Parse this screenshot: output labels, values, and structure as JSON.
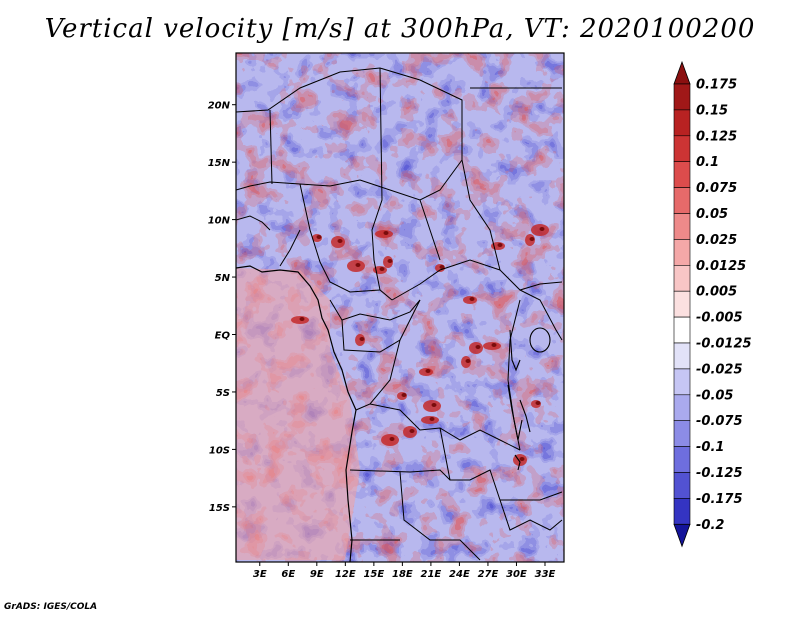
{
  "title": "Vertical velocity [m/s] at 300hPa, VT: 2020100200",
  "footer": "GrADS: IGES/COLA",
  "colors": {
    "background": "#ffffff",
    "border": "#000000"
  },
  "map": {
    "lat_ticks": [
      {
        "value": 20,
        "label": "20N"
      },
      {
        "value": 15,
        "label": "15N"
      },
      {
        "value": 10,
        "label": "10N"
      },
      {
        "value": 5,
        "label": "5N"
      },
      {
        "value": 0,
        "label": "EQ"
      },
      {
        "value": -5,
        "label": "5S"
      },
      {
        "value": -10,
        "label": "10S"
      },
      {
        "value": -15,
        "label": "15S"
      }
    ],
    "lon_ticks": [
      {
        "value": 3,
        "label": "3E"
      },
      {
        "value": 6,
        "label": "6E"
      },
      {
        "value": 9,
        "label": "9E"
      },
      {
        "value": 12,
        "label": "12E"
      },
      {
        "value": 15,
        "label": "15E"
      },
      {
        "value": 18,
        "label": "18E"
      },
      {
        "value": 21,
        "label": "21E"
      },
      {
        "value": 24,
        "label": "24E"
      },
      {
        "value": 27,
        "label": "27E"
      },
      {
        "value": 30,
        "label": "30E"
      },
      {
        "value": 33,
        "label": "33E"
      }
    ],
    "lon_range": [
      0.5,
      35
    ],
    "lat_range": [
      -19.8,
      24.5
    ]
  },
  "colorbar": {
    "levels": [
      {
        "label": "0.175",
        "color": "#a01818"
      },
      {
        "label": "0.15",
        "color": "#b82222"
      },
      {
        "label": "0.125",
        "color": "#cc3434"
      },
      {
        "label": "0.1",
        "color": "#dc4c4c"
      },
      {
        "label": "0.075",
        "color": "#e66a6a"
      },
      {
        "label": "0.05",
        "color": "#ee8a8a"
      },
      {
        "label": "0.025",
        "color": "#f4a8a8"
      },
      {
        "label": "0.0125",
        "color": "#f8c6c6"
      },
      {
        "label": "0.005",
        "color": "#fbe0e0"
      },
      {
        "label": "-0.005",
        "color": "#ffffff"
      },
      {
        "label": "-0.0125",
        "color": "#e2e2f8"
      },
      {
        "label": "-0.025",
        "color": "#c6c6f4"
      },
      {
        "label": "-0.05",
        "color": "#aaaaee"
      },
      {
        "label": "-0.075",
        "color": "#8c8ce6"
      },
      {
        "label": "-0.1",
        "color": "#6e6ede"
      },
      {
        "label": "-0.125",
        "color": "#5252d2"
      },
      {
        "label": "-0.175",
        "color": "#3434c2"
      },
      {
        "label": "-0.2",
        "color": "#1c1cae"
      }
    ],
    "top_arrow_color": "#8b1010",
    "bottom_arrow_color": "#14149a"
  }
}
